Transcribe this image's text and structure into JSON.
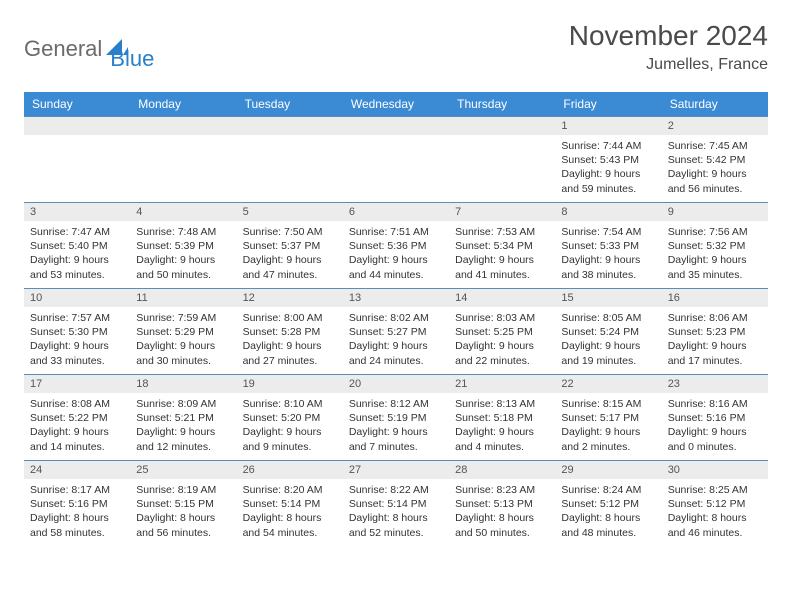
{
  "brand": {
    "part1": "General",
    "part2": "Blue",
    "color_gray": "#6b6b6b",
    "color_blue": "#2a7fca"
  },
  "title": "November 2024",
  "location": "Jumelles, France",
  "colors": {
    "header_bg": "#3b8bd4",
    "header_text": "#ffffff",
    "daynum_bg": "#ececec",
    "border": "#5b8db9",
    "body_text": "#333333"
  },
  "day_labels": [
    "Sunday",
    "Monday",
    "Tuesday",
    "Wednesday",
    "Thursday",
    "Friday",
    "Saturday"
  ],
  "weeks": [
    [
      {
        "n": "",
        "sr": "",
        "ss": "",
        "dl": ""
      },
      {
        "n": "",
        "sr": "",
        "ss": "",
        "dl": ""
      },
      {
        "n": "",
        "sr": "",
        "ss": "",
        "dl": ""
      },
      {
        "n": "",
        "sr": "",
        "ss": "",
        "dl": ""
      },
      {
        "n": "",
        "sr": "",
        "ss": "",
        "dl": ""
      },
      {
        "n": "1",
        "sr": "Sunrise: 7:44 AM",
        "ss": "Sunset: 5:43 PM",
        "dl": "Daylight: 9 hours and 59 minutes."
      },
      {
        "n": "2",
        "sr": "Sunrise: 7:45 AM",
        "ss": "Sunset: 5:42 PM",
        "dl": "Daylight: 9 hours and 56 minutes."
      }
    ],
    [
      {
        "n": "3",
        "sr": "Sunrise: 7:47 AM",
        "ss": "Sunset: 5:40 PM",
        "dl": "Daylight: 9 hours and 53 minutes."
      },
      {
        "n": "4",
        "sr": "Sunrise: 7:48 AM",
        "ss": "Sunset: 5:39 PM",
        "dl": "Daylight: 9 hours and 50 minutes."
      },
      {
        "n": "5",
        "sr": "Sunrise: 7:50 AM",
        "ss": "Sunset: 5:37 PM",
        "dl": "Daylight: 9 hours and 47 minutes."
      },
      {
        "n": "6",
        "sr": "Sunrise: 7:51 AM",
        "ss": "Sunset: 5:36 PM",
        "dl": "Daylight: 9 hours and 44 minutes."
      },
      {
        "n": "7",
        "sr": "Sunrise: 7:53 AM",
        "ss": "Sunset: 5:34 PM",
        "dl": "Daylight: 9 hours and 41 minutes."
      },
      {
        "n": "8",
        "sr": "Sunrise: 7:54 AM",
        "ss": "Sunset: 5:33 PM",
        "dl": "Daylight: 9 hours and 38 minutes."
      },
      {
        "n": "9",
        "sr": "Sunrise: 7:56 AM",
        "ss": "Sunset: 5:32 PM",
        "dl": "Daylight: 9 hours and 35 minutes."
      }
    ],
    [
      {
        "n": "10",
        "sr": "Sunrise: 7:57 AM",
        "ss": "Sunset: 5:30 PM",
        "dl": "Daylight: 9 hours and 33 minutes."
      },
      {
        "n": "11",
        "sr": "Sunrise: 7:59 AM",
        "ss": "Sunset: 5:29 PM",
        "dl": "Daylight: 9 hours and 30 minutes."
      },
      {
        "n": "12",
        "sr": "Sunrise: 8:00 AM",
        "ss": "Sunset: 5:28 PM",
        "dl": "Daylight: 9 hours and 27 minutes."
      },
      {
        "n": "13",
        "sr": "Sunrise: 8:02 AM",
        "ss": "Sunset: 5:27 PM",
        "dl": "Daylight: 9 hours and 24 minutes."
      },
      {
        "n": "14",
        "sr": "Sunrise: 8:03 AM",
        "ss": "Sunset: 5:25 PM",
        "dl": "Daylight: 9 hours and 22 minutes."
      },
      {
        "n": "15",
        "sr": "Sunrise: 8:05 AM",
        "ss": "Sunset: 5:24 PM",
        "dl": "Daylight: 9 hours and 19 minutes."
      },
      {
        "n": "16",
        "sr": "Sunrise: 8:06 AM",
        "ss": "Sunset: 5:23 PM",
        "dl": "Daylight: 9 hours and 17 minutes."
      }
    ],
    [
      {
        "n": "17",
        "sr": "Sunrise: 8:08 AM",
        "ss": "Sunset: 5:22 PM",
        "dl": "Daylight: 9 hours and 14 minutes."
      },
      {
        "n": "18",
        "sr": "Sunrise: 8:09 AM",
        "ss": "Sunset: 5:21 PM",
        "dl": "Daylight: 9 hours and 12 minutes."
      },
      {
        "n": "19",
        "sr": "Sunrise: 8:10 AM",
        "ss": "Sunset: 5:20 PM",
        "dl": "Daylight: 9 hours and 9 minutes."
      },
      {
        "n": "20",
        "sr": "Sunrise: 8:12 AM",
        "ss": "Sunset: 5:19 PM",
        "dl": "Daylight: 9 hours and 7 minutes."
      },
      {
        "n": "21",
        "sr": "Sunrise: 8:13 AM",
        "ss": "Sunset: 5:18 PM",
        "dl": "Daylight: 9 hours and 4 minutes."
      },
      {
        "n": "22",
        "sr": "Sunrise: 8:15 AM",
        "ss": "Sunset: 5:17 PM",
        "dl": "Daylight: 9 hours and 2 minutes."
      },
      {
        "n": "23",
        "sr": "Sunrise: 8:16 AM",
        "ss": "Sunset: 5:16 PM",
        "dl": "Daylight: 9 hours and 0 minutes."
      }
    ],
    [
      {
        "n": "24",
        "sr": "Sunrise: 8:17 AM",
        "ss": "Sunset: 5:16 PM",
        "dl": "Daylight: 8 hours and 58 minutes."
      },
      {
        "n": "25",
        "sr": "Sunrise: 8:19 AM",
        "ss": "Sunset: 5:15 PM",
        "dl": "Daylight: 8 hours and 56 minutes."
      },
      {
        "n": "26",
        "sr": "Sunrise: 8:20 AM",
        "ss": "Sunset: 5:14 PM",
        "dl": "Daylight: 8 hours and 54 minutes."
      },
      {
        "n": "27",
        "sr": "Sunrise: 8:22 AM",
        "ss": "Sunset: 5:14 PM",
        "dl": "Daylight: 8 hours and 52 minutes."
      },
      {
        "n": "28",
        "sr": "Sunrise: 8:23 AM",
        "ss": "Sunset: 5:13 PM",
        "dl": "Daylight: 8 hours and 50 minutes."
      },
      {
        "n": "29",
        "sr": "Sunrise: 8:24 AM",
        "ss": "Sunset: 5:12 PM",
        "dl": "Daylight: 8 hours and 48 minutes."
      },
      {
        "n": "30",
        "sr": "Sunrise: 8:25 AM",
        "ss": "Sunset: 5:12 PM",
        "dl": "Daylight: 8 hours and 46 minutes."
      }
    ]
  ]
}
